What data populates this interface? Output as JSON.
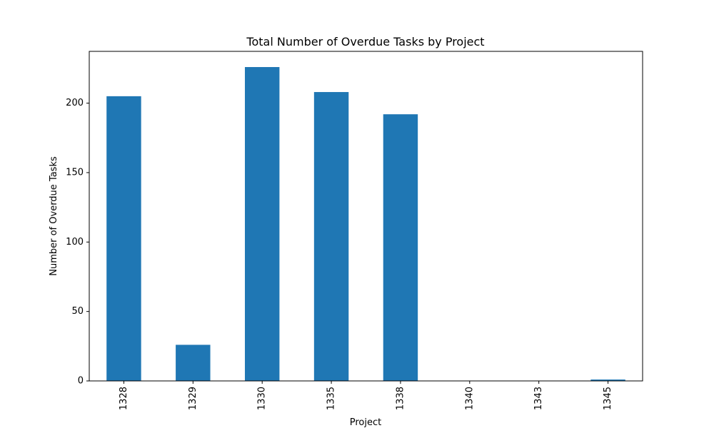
{
  "chart_data": {
    "type": "bar",
    "title": "Total Number of Overdue Tasks by Project",
    "xlabel": "Project",
    "ylabel": "Number of Overdue Tasks",
    "categories": [
      "1328",
      "1329",
      "1330",
      "1335",
      "1338",
      "1340",
      "1343",
      "1345"
    ],
    "values": [
      205,
      26,
      226,
      208,
      192,
      0,
      0,
      1
    ],
    "ylim": [
      0,
      237.3
    ],
    "yticks": [
      0,
      50,
      100,
      150,
      200
    ],
    "grid": false,
    "legend": "none",
    "bar_color": "#1f77b4"
  }
}
